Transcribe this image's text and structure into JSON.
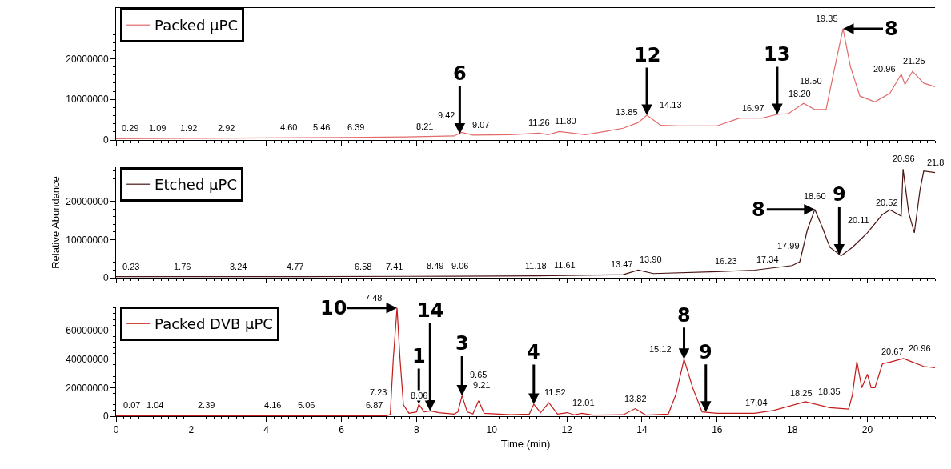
{
  "chart_data": [
    {
      "type": "line",
      "xlim": [
        0,
        21.8
      ],
      "xticks": [
        0,
        2,
        4,
        6,
        8,
        10,
        12,
        14,
        16,
        18,
        20
      ],
      "ylim": [
        0,
        32500000
      ],
      "yticks": [
        0,
        10000000,
        20000000
      ],
      "tick_labels": "y",
      "legend": "top left",
      "series": [
        {
          "name": "Packed µPC",
          "color": "#e36a6a",
          "x": [
            0,
            2,
            4,
            6,
            8,
            9.0,
            9.2,
            9.5,
            10.5,
            11.26,
            11.5,
            11.8,
            12.5,
            13.5,
            13.9,
            14.13,
            14.5,
            15,
            16,
            16.6,
            17.2,
            17.6,
            17.9,
            18.3,
            18.6,
            18.9,
            19.1,
            19.35,
            19.55,
            19.8,
            20.2,
            20.6,
            20.9,
            21.0,
            21.2,
            21.5,
            21.8
          ],
          "values": [
            300000,
            400000,
            500000,
            600000,
            800000,
            1000000,
            1900000,
            1200000,
            1300000,
            1700000,
            1300000,
            2100000,
            1300000,
            2900000,
            4300000,
            6100000,
            3600000,
            3500000,
            3500000,
            5400000,
            5400000,
            6300000,
            6500000,
            9000000,
            7500000,
            7500000,
            16500000,
            27400000,
            18000000,
            10800000,
            9400000,
            11500000,
            16200000,
            13700000,
            16900000,
            14000000,
            13100000
          ]
        }
      ],
      "annotations": [
        {
          "text": "0.29",
          "x": 0.29,
          "y": 400000
        },
        {
          "text": "1.09",
          "x": 1.09,
          "y": 400000
        },
        {
          "text": "1.92",
          "x": 1.92,
          "y": 400000
        },
        {
          "text": "2.92",
          "x": 2.92,
          "y": 400000
        },
        {
          "text": "4.60",
          "x": 4.6,
          "y": 500000
        },
        {
          "text": "5.46",
          "x": 5.46,
          "y": 500000
        },
        {
          "text": "6.39",
          "x": 6.39,
          "y": 600000
        },
        {
          "text": "8.21",
          "x": 8.21,
          "y": 800000
        },
        {
          "text": "9.07",
          "x": 9.07,
          "y": 1200000
        },
        {
          "text": "9.42",
          "x": 9.42,
          "y": 1900000
        },
        {
          "text": "11.26",
          "x": 11.26,
          "y": 1700000
        },
        {
          "text": "11.80",
          "x": 11.8,
          "y": 2100000
        },
        {
          "text": "13.85",
          "x": 13.85,
          "y": 4300000
        },
        {
          "text": "14.13",
          "x": 14.13,
          "y": 6100000
        },
        {
          "text": "16.97",
          "x": 16.97,
          "y": 5400000
        },
        {
          "text": "18.20",
          "x": 18.2,
          "y": 8000000
        },
        {
          "text": "18.50",
          "x": 18.5,
          "y": 8000000
        },
        {
          "text": "19.35",
          "x": 19.35,
          "y": 27400000
        },
        {
          "text": "20.96",
          "x": 20.96,
          "y": 15000000
        },
        {
          "text": "21.25",
          "x": 21.25,
          "y": 16900000
        },
        {
          "text": "6",
          "x": 9.15,
          "y": 1500000
        },
        {
          "text": "12",
          "x": 14.13,
          "y": 6100000
        },
        {
          "text": "13",
          "x": 17.6,
          "y": 6300000
        },
        {
          "text": "8",
          "x": 19.35,
          "y": 27400000
        }
      ]
    },
    {
      "type": "line",
      "xlim": [
        0,
        21.8
      ],
      "xticks": [
        0,
        2,
        4,
        6,
        8,
        10,
        12,
        14,
        16,
        18,
        20
      ],
      "ylim": [
        0,
        29000000
      ],
      "yticks": [
        0,
        10000000,
        20000000
      ],
      "tick_labels": "y",
      "legend": "top left",
      "ylabel": "Relative Abundance",
      "series": [
        {
          "name": "Etched µPC",
          "color": "#4a1414",
          "x": [
            0,
            5,
            9,
            11.2,
            13.5,
            13.9,
            14.3,
            16,
            17,
            18,
            18.2,
            18.4,
            18.6,
            18.8,
            19.0,
            19.3,
            19.6,
            20.0,
            20.4,
            20.6,
            20.9,
            20.95,
            21.1,
            21.25,
            21.4,
            21.5,
            21.8
          ],
          "values": [
            300000,
            300000,
            400000,
            500000,
            800000,
            2000000,
            1100000,
            1600000,
            2000000,
            3200000,
            4200000,
            12500000,
            17900000,
            13200000,
            8000000,
            5800000,
            8000000,
            11800000,
            16600000,
            17800000,
            16200000,
            28500000,
            17000000,
            11800000,
            23000000,
            28000000,
            27600000
          ]
        }
      ],
      "annotations": [
        {
          "text": "0.23",
          "x": 0.23,
          "y": 300000
        },
        {
          "text": "1.76",
          "x": 1.76,
          "y": 300000
        },
        {
          "text": "3.24",
          "x": 3.24,
          "y": 300000
        },
        {
          "text": "4.77",
          "x": 4.77,
          "y": 300000
        },
        {
          "text": "6.58",
          "x": 6.58,
          "y": 300000
        },
        {
          "text": "7.41",
          "x": 7.41,
          "y": 300000
        },
        {
          "text": "8.49",
          "x": 8.49,
          "y": 400000
        },
        {
          "text": "9.06",
          "x": 9.06,
          "y": 400000
        },
        {
          "text": "11.18",
          "x": 11.18,
          "y": 500000
        },
        {
          "text": "11.61",
          "x": 11.61,
          "y": 600000
        },
        {
          "text": "13.47",
          "x": 13.47,
          "y": 800000
        },
        {
          "text": "13.90",
          "x": 13.9,
          "y": 2000000
        },
        {
          "text": "16.23",
          "x": 16.23,
          "y": 1600000
        },
        {
          "text": "17.34",
          "x": 17.34,
          "y": 2200000
        },
        {
          "text": "17.99",
          "x": 17.99,
          "y": 3200000
        },
        {
          "text": "18.60",
          "x": 18.6,
          "y": 17900000
        },
        {
          "text": "20.11",
          "x": 20.11,
          "y": 12500000
        },
        {
          "text": "20.52",
          "x": 20.52,
          "y": 17000000
        },
        {
          "text": "20.96",
          "x": 20.96,
          "y": 28500000
        },
        {
          "text": "21.8",
          "x": 21.8,
          "y": 27600000
        },
        {
          "text": "8",
          "x": 18.6,
          "y": 17900000
        },
        {
          "text": "9",
          "x": 19.25,
          "y": 6000000
        }
      ]
    },
    {
      "type": "line",
      "xlim": [
        0,
        21.8
      ],
      "xticks": [
        0,
        2,
        4,
        6,
        8,
        10,
        12,
        14,
        16,
        18,
        20
      ],
      "ylim": [
        0,
        77000000
      ],
      "yticks": [
        0,
        20000000,
        40000000,
        60000000
      ],
      "legend": "top left",
      "xlabel": "Time (min)",
      "series": [
        {
          "name": "Packed DVB µPC",
          "color": "#c41a1a",
          "x": [
            0,
            7.2,
            7.3,
            7.38,
            7.48,
            7.56,
            7.65,
            7.8,
            8.0,
            8.06,
            8.2,
            8.36,
            8.6,
            9.0,
            9.1,
            9.21,
            9.35,
            9.5,
            9.65,
            9.8,
            10.5,
            11.0,
            11.12,
            11.3,
            11.52,
            11.75,
            12.01,
            12.2,
            12.4,
            12.7,
            13.5,
            13.82,
            14.1,
            14.7,
            14.9,
            15.12,
            15.35,
            15.6,
            16,
            17,
            17.5,
            18.35,
            19,
            19.5,
            19.6,
            19.72,
            19.85,
            20.0,
            20.1,
            20.2,
            20.4,
            20.6,
            20.96,
            21.2,
            21.5,
            21.8
          ],
          "values": [
            300000,
            400000,
            1200000,
            40000000,
            76000000,
            40000000,
            8000000,
            2000000,
            3000000,
            8400000,
            3000000,
            3700000,
            2500000,
            1500000,
            3000000,
            14400000,
            3000000,
            1500000,
            10800000,
            2000000,
            1000000,
            1500000,
            8400000,
            2500000,
            9500000,
            1500000,
            2500000,
            1000000,
            2000000,
            800000,
            1000000,
            5300000,
            800000,
            1500000,
            15000000,
            40000000,
            20000000,
            3000000,
            2000000,
            2000000,
            4000000,
            10200000,
            6000000,
            5000000,
            15000000,
            38400000,
            20000000,
            29500000,
            20000000,
            20000000,
            36800000,
            38000000,
            40500000,
            38000000,
            35000000,
            34000000
          ]
        }
      ],
      "annotations": [
        {
          "text": "0.07",
          "x": 0.07,
          "y": 300000
        },
        {
          "text": "1.04",
          "x": 1.04,
          "y": 300000
        },
        {
          "text": "2.39",
          "x": 2.39,
          "y": 300000
        },
        {
          "text": "4.16",
          "x": 4.16,
          "y": 300000
        },
        {
          "text": "5.06",
          "x": 5.06,
          "y": 300000
        },
        {
          "text": "6.87",
          "x": 6.87,
          "y": 300000
        },
        {
          "text": "7.23",
          "x": 7.23,
          "y": 400000
        },
        {
          "text": "7.48",
          "x": 7.48,
          "y": 76000000
        },
        {
          "text": "8.06",
          "x": 8.06,
          "y": 8400000
        },
        {
          "text": "9.21",
          "x": 9.21,
          "y": 14400000
        },
        {
          "text": "9.65",
          "x": 9.65,
          "y": 10800000
        },
        {
          "text": "11.52",
          "x": 11.52,
          "y": 9500000
        },
        {
          "text": "12.01",
          "x": 12.01,
          "y": 2500000
        },
        {
          "text": "13.82",
          "x": 13.82,
          "y": 5300000
        },
        {
          "text": "15.12",
          "x": 15.12,
          "y": 40000000
        },
        {
          "text": "17.04",
          "x": 17.04,
          "y": 2000000
        },
        {
          "text": "18.25",
          "x": 18.25,
          "y": 9000000
        },
        {
          "text": "18.35",
          "x": 18.35,
          "y": 10200000
        },
        {
          "text": "20.67",
          "x": 20.67,
          "y": 38000000
        },
        {
          "text": "20.96",
          "x": 20.96,
          "y": 40500000
        },
        {
          "text": "10",
          "x": 7.48,
          "y": 76000000
        },
        {
          "text": "1",
          "x": 8.06,
          "y": 8400000
        },
        {
          "text": "14",
          "x": 8.36,
          "y": 3700000
        },
        {
          "text": "3",
          "x": 9.21,
          "y": 14400000
        },
        {
          "text": "4",
          "x": 11.12,
          "y": 8400000
        },
        {
          "text": "8",
          "x": 15.12,
          "y": 40000000
        },
        {
          "text": "9",
          "x": 15.7,
          "y": 3000000
        }
      ]
    }
  ]
}
